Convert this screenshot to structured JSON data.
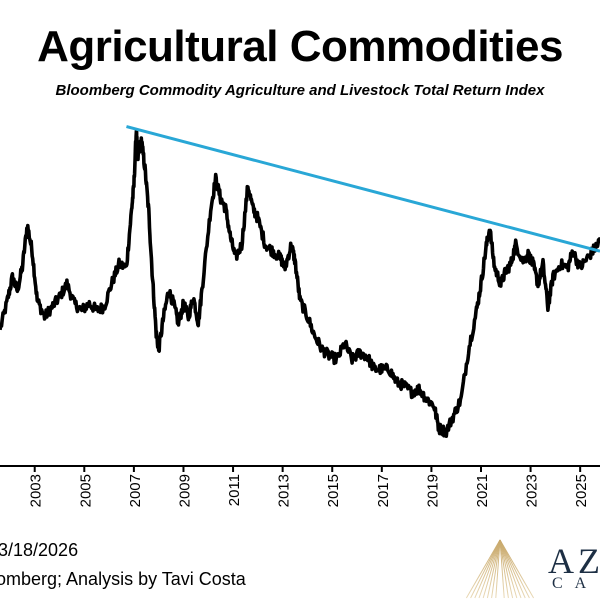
{
  "header": {
    "title": "Agricultural Commodities",
    "subtitle": "Bloomberg Commodity Agriculture and Livestock Total Return Index"
  },
  "footer": {
    "date": "3/18/2026",
    "source": "omberg; Analysis by Tavi Costa",
    "logo_text": "AZ",
    "logo_subtext": "CA"
  },
  "colors": {
    "line": "#000000",
    "trendline": "#29a7d6",
    "logo": "#1d2f44"
  },
  "chart_data": {
    "type": "line",
    "title": "Agricultural Commodities",
    "subtitle": "Bloomberg Commodity Agriculture and Livestock Total Return Index",
    "xlabel": "",
    "ylabel": "",
    "x_range": [
      2001.6,
      2025.8
    ],
    "y_range": [
      0,
      100
    ],
    "y_axis_visible": false,
    "grid": false,
    "x_ticks": [
      "2003",
      "2005",
      "2007",
      "2009",
      "2011",
      "2013",
      "2015",
      "2017",
      "2019",
      "2021",
      "2023",
      "2025"
    ],
    "series": [
      {
        "values": [
          [
            2001.6,
            36
          ],
          [
            2001.9,
            45
          ],
          [
            2002.1,
            52
          ],
          [
            2002.3,
            48
          ],
          [
            2002.5,
            55
          ],
          [
            2002.7,
            68
          ],
          [
            2002.9,
            60
          ],
          [
            2003.1,
            45
          ],
          [
            2003.4,
            40
          ],
          [
            2003.7,
            43
          ],
          [
            2004.0,
            46
          ],
          [
            2004.3,
            50
          ],
          [
            2004.6,
            44
          ],
          [
            2004.9,
            42
          ],
          [
            2005.2,
            44
          ],
          [
            2005.5,
            42
          ],
          [
            2005.8,
            43
          ],
          [
            2006.1,
            50
          ],
          [
            2006.4,
            56
          ],
          [
            2006.7,
            55
          ],
          [
            2006.9,
            72
          ],
          [
            2007.0,
            80
          ],
          [
            2007.1,
            97
          ],
          [
            2007.15,
            88
          ],
          [
            2007.3,
            94
          ],
          [
            2007.45,
            85
          ],
          [
            2007.6,
            72
          ],
          [
            2007.75,
            52
          ],
          [
            2007.9,
            35
          ],
          [
            2008.0,
            30
          ],
          [
            2008.2,
            40
          ],
          [
            2008.4,
            48
          ],
          [
            2008.6,
            44
          ],
          [
            2008.8,
            38
          ],
          [
            2009.0,
            44
          ],
          [
            2009.2,
            40
          ],
          [
            2009.4,
            46
          ],
          [
            2009.6,
            38
          ],
          [
            2009.8,
            52
          ],
          [
            2010.1,
            73
          ],
          [
            2010.3,
            82
          ],
          [
            2010.5,
            76
          ],
          [
            2010.7,
            73
          ],
          [
            2010.9,
            64
          ],
          [
            2011.1,
            58
          ],
          [
            2011.35,
            62
          ],
          [
            2011.6,
            80
          ],
          [
            2011.8,
            73
          ],
          [
            2012.0,
            70
          ],
          [
            2012.3,
            62
          ],
          [
            2012.6,
            60
          ],
          [
            2012.9,
            58
          ],
          [
            2013.1,
            55
          ],
          [
            2013.35,
            62
          ],
          [
            2013.5,
            57
          ],
          [
            2013.7,
            45
          ],
          [
            2014.0,
            40
          ],
          [
            2014.3,
            34
          ],
          [
            2014.6,
            30
          ],
          [
            2014.9,
            28
          ],
          [
            2015.2,
            27
          ],
          [
            2015.5,
            32
          ],
          [
            2015.8,
            27
          ],
          [
            2016.1,
            29
          ],
          [
            2016.4,
            28
          ],
          [
            2016.7,
            24
          ],
          [
            2017.0,
            24
          ],
          [
            2017.3,
            24
          ],
          [
            2017.6,
            20
          ],
          [
            2017.9,
            19
          ],
          [
            2018.2,
            17
          ],
          [
            2018.5,
            18
          ],
          [
            2018.8,
            15
          ],
          [
            2019.1,
            13
          ],
          [
            2019.3,
            6
          ],
          [
            2019.6,
            5
          ],
          [
            2019.9,
            10
          ],
          [
            2020.2,
            15
          ],
          [
            2020.5,
            30
          ],
          [
            2020.8,
            41
          ],
          [
            2021.0,
            50
          ],
          [
            2021.2,
            61
          ],
          [
            2021.35,
            67
          ],
          [
            2021.55,
            55
          ],
          [
            2021.8,
            50
          ],
          [
            2022.0,
            54
          ],
          [
            2022.2,
            56
          ],
          [
            2022.4,
            62
          ],
          [
            2022.7,
            57
          ],
          [
            2022.9,
            59
          ],
          [
            2023.1,
            56
          ],
          [
            2023.3,
            50
          ],
          [
            2023.5,
            56
          ],
          [
            2023.7,
            43
          ],
          [
            2023.9,
            52
          ],
          [
            2024.2,
            56
          ],
          [
            2024.5,
            55
          ],
          [
            2024.7,
            60
          ],
          [
            2025.0,
            55
          ],
          [
            2025.3,
            58
          ],
          [
            2025.6,
            61
          ],
          [
            2025.8,
            63
          ]
        ]
      }
    ],
    "trendline": {
      "start": [
        2006.7,
        98
      ],
      "end": [
        2025.8,
        60
      ]
    }
  }
}
